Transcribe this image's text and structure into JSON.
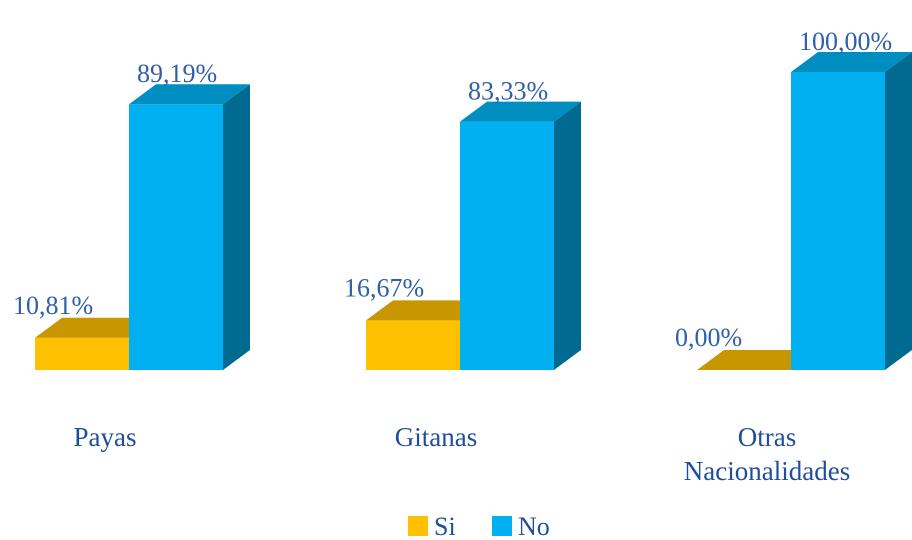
{
  "chart_data": {
    "type": "bar3d",
    "categories": [
      "Payas",
      "Gitanas",
      "Otras Nacionalidades"
    ],
    "series": [
      {
        "name": "Si",
        "color": "#ffc000",
        "values": [
          10.81,
          16.67,
          0.0
        ],
        "value_labels": [
          "10,81%",
          "16,67%",
          "0,00%"
        ]
      },
      {
        "name": "No",
        "color": "#00b0f0",
        "values": [
          89.19,
          83.33,
          100.0
        ],
        "value_labels": [
          "89,19%",
          "83,33%",
          "100,00%"
        ]
      }
    ],
    "legend": "bottom"
  }
}
